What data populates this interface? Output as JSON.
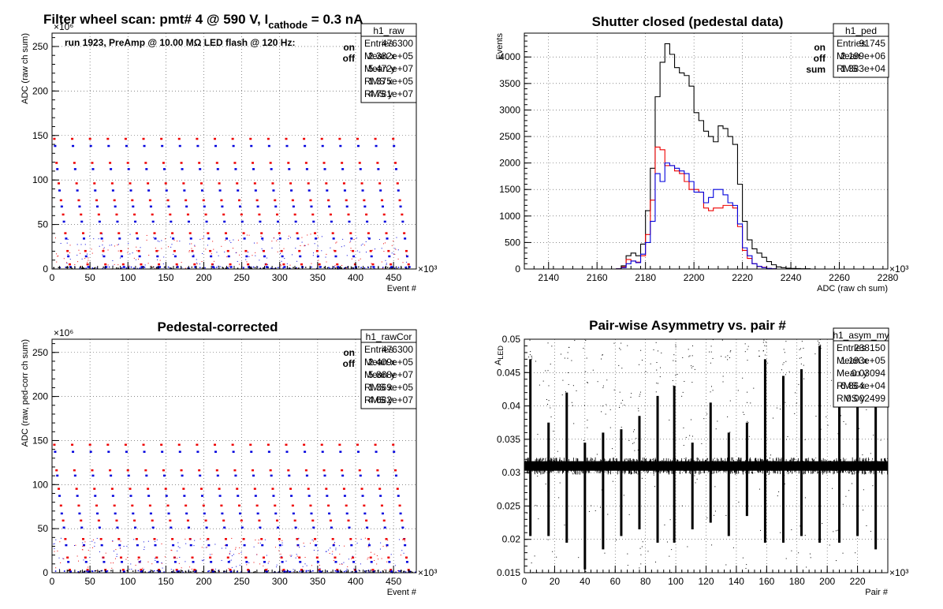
{
  "chart_data": [
    {
      "id": "raw",
      "type": "scatter",
      "title": "Filter wheel scan: pmt#   4 @   590 V, I",
      "title_sub": "cathode",
      "title_tail": "   = 0.3 nA",
      "annotation": "run 1923, PreAmp @ 10.00 MΩ LED flash @  120 Hz:",
      "xlabel": "Event #",
      "ylabel": "ADC (raw ch sum)",
      "xlim": [
        0,
        480
      ],
      "ylim": [
        0,
        265
      ],
      "x_multiplier": "×10³",
      "y_multiplier": "×10⁶",
      "x_ticks": [
        0,
        50,
        100,
        150,
        200,
        250,
        300,
        350,
        400,
        450
      ],
      "y_ticks": [
        0,
        50,
        100,
        150,
        200,
        250
      ],
      "grid": true,
      "legend_position": "top-right",
      "legend": [
        "on",
        "off"
      ],
      "series_colors": {
        "on": "#ee0000",
        "off": "#0000dd"
      },
      "stats": {
        "name": "h1_raw",
        "rows": [
          [
            "Entries",
            "476300"
          ],
          [
            "Mean x",
            "2.382e+05"
          ],
          [
            "Mean y",
            "5.472e+07"
          ],
          [
            "RMS x",
            "1.375e+05"
          ],
          [
            "RMS y",
            "4.781e+07"
          ]
        ]
      },
      "cycle_period": 23.5,
      "on_levels": [
        146,
        119,
        96,
        77,
        61,
        40,
        20,
        5
      ],
      "off_levels": [
        138,
        112,
        88,
        70,
        53,
        34,
        14,
        2
      ]
    },
    {
      "id": "ped",
      "type": "histogram",
      "title": "Shutter closed (pedestal data)",
      "xlabel": "ADC (raw ch sum)",
      "ylabel": "Events",
      "xlim": [
        2130,
        2280
      ],
      "ylim": [
        0,
        4450
      ],
      "x_multiplier": "×10³",
      "x_ticks": [
        2140,
        2160,
        2180,
        2200,
        2220,
        2240,
        2260,
        2280
      ],
      "y_ticks": [
        0,
        500,
        1000,
        1500,
        2000,
        2500,
        3000,
        3500,
        4000
      ],
      "grid": true,
      "legend_position": "top-right",
      "legend": [
        "on",
        "off",
        "sum"
      ],
      "series_colors": {
        "on": "#ee0000",
        "off": "#0000dd",
        "sum": "#000000"
      },
      "bin_start": 2130,
      "bin_width": 2,
      "series": [
        {
          "name": "sum",
          "values": [
            0,
            0,
            0,
            0,
            0,
            0,
            0,
            0,
            0,
            0,
            0,
            0,
            0,
            0,
            0,
            0,
            0,
            0,
            0,
            5,
            60,
            250,
            300,
            250,
            470,
            1100,
            1900,
            3250,
            3900,
            4250,
            4050,
            3800,
            3700,
            3650,
            3450,
            2950,
            2800,
            2600,
            2500,
            2400,
            2700,
            2650,
            2500,
            2350,
            1600,
            900,
            550,
            380,
            300,
            220,
            140,
            80,
            40,
            25,
            15,
            10,
            8,
            5,
            5,
            0,
            0,
            0,
            0,
            0,
            0,
            0,
            0,
            0,
            0,
            0,
            0,
            0,
            0,
            0,
            0
          ]
        },
        {
          "name": "on",
          "values": [
            0,
            0,
            0,
            0,
            0,
            0,
            0,
            0,
            0,
            0,
            0,
            0,
            0,
            0,
            0,
            0,
            0,
            0,
            0,
            3,
            40,
            180,
            150,
            130,
            250,
            650,
            1300,
            2300,
            2250,
            1950,
            1950,
            1850,
            1800,
            1650,
            1500,
            1500,
            1450,
            1150,
            1100,
            1150,
            1150,
            1200,
            1200,
            1150,
            800,
            350,
            200,
            100,
            50,
            30,
            10,
            5,
            0,
            0,
            0,
            0,
            0,
            0,
            0,
            0,
            0,
            0,
            0,
            0,
            0,
            0,
            0,
            0,
            0,
            0,
            0,
            0,
            0,
            0,
            0
          ]
        },
        {
          "name": "off",
          "values": [
            0,
            0,
            0,
            0,
            0,
            0,
            0,
            0,
            0,
            0,
            0,
            0,
            0,
            0,
            0,
            0,
            0,
            0,
            0,
            3,
            25,
            100,
            150,
            120,
            280,
            500,
            900,
            1800,
            1650,
            2000,
            1950,
            1900,
            1850,
            1800,
            1650,
            1450,
            1450,
            1250,
            1350,
            1500,
            1500,
            1400,
            1250,
            1200,
            850,
            400,
            250,
            100,
            50,
            25,
            10,
            5,
            0,
            0,
            0,
            0,
            0,
            0,
            0,
            0,
            0,
            0,
            0,
            0,
            0,
            0,
            0,
            0,
            0,
            0,
            0,
            0,
            0,
            0,
            0
          ]
        }
      ],
      "stats": {
        "name": "h1_ped",
        "rows": [
          [
            "Entries",
            "91745"
          ],
          [
            "Mean",
            "2.199e+06"
          ],
          [
            "RMS",
            "1.383e+04"
          ]
        ]
      }
    },
    {
      "id": "cor",
      "type": "scatter",
      "title": "Pedestal-corrected",
      "xlabel": "Event #",
      "ylabel": "ADC (raw, ped-corr ch sum)",
      "xlim": [
        0,
        480
      ],
      "ylim": [
        0,
        265
      ],
      "x_multiplier": "×10³",
      "y_multiplier": "×10⁶",
      "x_ticks": [
        0,
        50,
        100,
        150,
        200,
        250,
        300,
        350,
        400,
        450
      ],
      "y_ticks": [
        0,
        50,
        100,
        150,
        200,
        250
      ],
      "grid": true,
      "legend_position": "top-right",
      "legend": [
        "on",
        "off"
      ],
      "series_colors": {
        "on": "#ee0000",
        "off": "#0000dd"
      },
      "stats": {
        "name": "h1_rawCor",
        "rows": [
          [
            "Entries",
            "476300"
          ],
          [
            "Mean x",
            "2.409e+05"
          ],
          [
            "Mean y",
            "5.868e+07"
          ],
          [
            "RMS x",
            "1.369e+05"
          ],
          [
            "RMS y",
            "4.682e+07"
          ]
        ]
      },
      "cycle_period": 23.5,
      "on_levels": [
        145,
        116,
        95,
        76,
        59,
        38,
        17,
        3
      ],
      "off_levels": [
        137,
        110,
        87,
        67,
        51,
        31,
        12,
        1
      ]
    },
    {
      "id": "asym",
      "type": "scatter",
      "title": "Pair-wise Asymmetry vs. pair #",
      "xlabel": "Pair #",
      "ylabel": "A",
      "ylabel_sub": "LED",
      "xlim": [
        0,
        240
      ],
      "ylim": [
        0.015,
        0.05
      ],
      "x_multiplier": "×10³",
      "x_ticks": [
        0,
        20,
        40,
        60,
        80,
        100,
        120,
        140,
        160,
        180,
        200,
        220
      ],
      "y_ticks": [
        0.015,
        0.02,
        0.025,
        0.03,
        0.035,
        0.04,
        0.045,
        0.05
      ],
      "y_tick_labels": [
        "0.015",
        "0.02",
        "0.025",
        "0.03",
        "0.035",
        "0.04",
        "0.045",
        "0.05"
      ],
      "grid": true,
      "stats": {
        "name": "h1_asym_my",
        "rows": [
          [
            "Entries",
            "238150"
          ],
          [
            "Mean x",
            "1.193e+05"
          ],
          [
            "Mean y",
            "0.03094"
          ],
          [
            "RMS x",
            "6.864e+04"
          ],
          [
            "RMS y",
            "0.002499"
          ]
        ]
      },
      "band_center": 0.031,
      "band_halfwidth": 0.0013,
      "spikes": [
        {
          "x": 4,
          "lo": 0.0205,
          "hi": 0.047
        },
        {
          "x": 16,
          "lo": 0.0205,
          "hi": 0.0375
        },
        {
          "x": 28,
          "lo": 0.0195,
          "hi": 0.042
        },
        {
          "x": 40,
          "lo": 0.0155,
          "hi": 0.0345
        },
        {
          "x": 52,
          "lo": 0.0185,
          "hi": 0.036
        },
        {
          "x": 64,
          "lo": 0.0205,
          "hi": 0.0365
        },
        {
          "x": 76,
          "lo": 0.0215,
          "hi": 0.0385
        },
        {
          "x": 88,
          "lo": 0.0195,
          "hi": 0.0415
        },
        {
          "x": 99,
          "lo": 0.0195,
          "hi": 0.043
        },
        {
          "x": 111,
          "lo": 0.0215,
          "hi": 0.0345
        },
        {
          "x": 123,
          "lo": 0.0225,
          "hi": 0.0405
        },
        {
          "x": 135,
          "lo": 0.0205,
          "hi": 0.036
        },
        {
          "x": 147,
          "lo": 0.0235,
          "hi": 0.0375
        },
        {
          "x": 159,
          "lo": 0.0195,
          "hi": 0.047
        },
        {
          "x": 171,
          "lo": 0.0195,
          "hi": 0.0445
        },
        {
          "x": 183,
          "lo": 0.0205,
          "hi": 0.0455
        },
        {
          "x": 195,
          "lo": 0.0195,
          "hi": 0.049
        },
        {
          "x": 208,
          "lo": 0.0195,
          "hi": 0.044
        },
        {
          "x": 220,
          "lo": 0.0205,
          "hi": 0.042
        },
        {
          "x": 232,
          "lo": 0.0185,
          "hi": 0.0455
        }
      ]
    }
  ]
}
